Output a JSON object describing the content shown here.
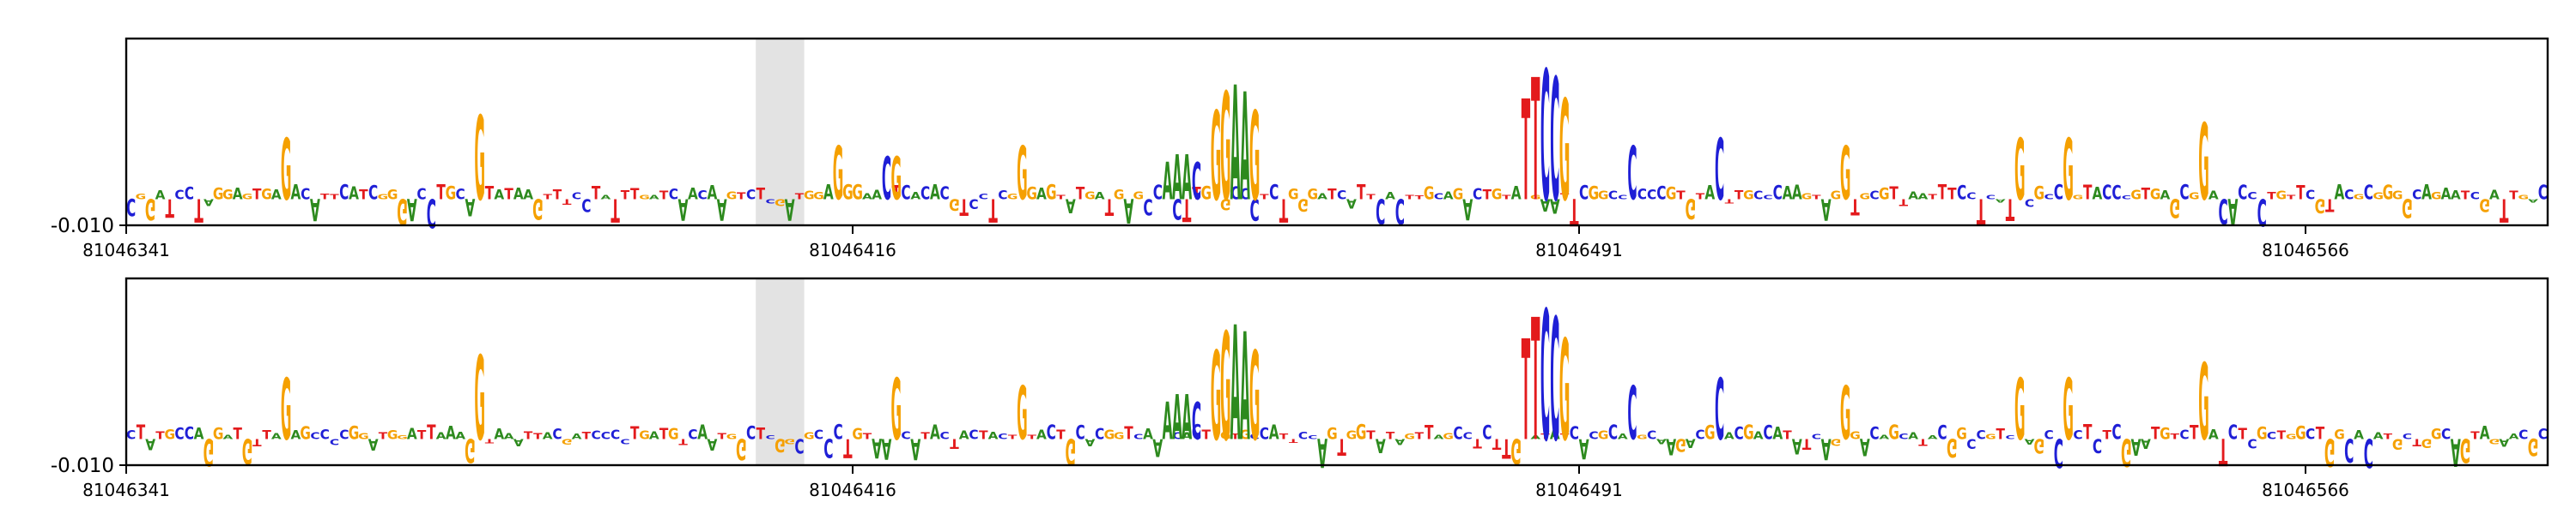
{
  "chart_data": [
    {
      "type": "sequence-logo",
      "panel": "top",
      "x_start": 81046341,
      "x_end": 81046591,
      "x_ticks": [
        81046341,
        81046416,
        81046491,
        81046566
      ],
      "x_tick_labels": [
        "81046341",
        "81046416",
        "81046491",
        "81046566"
      ],
      "y_tick_labels": [
        "-0.010"
      ],
      "highlight_region": [
        81046406,
        81046411
      ],
      "letter_colors": {
        "A": "#2d8a1e",
        "C": "#1f1fd6",
        "G": "#f5a000",
        "T": "#e31a1c"
      },
      "motif_peaks": [
        {
          "x": 81046357,
          "text": "G",
          "height": 0.4
        },
        {
          "x": 81046377,
          "text": "G",
          "height": 0.55
        },
        {
          "x": 81046414,
          "text": "G",
          "height": 0.35
        },
        {
          "x": 81046419,
          "text": "CG",
          "height": 0.3
        },
        {
          "x": 81046433,
          "text": "G",
          "height": 0.35
        },
        {
          "x": 81046448,
          "text": "AAAC",
          "height": 0.3
        },
        {
          "x": 81046453,
          "text": "GGAAG",
          "height": 0.75
        },
        {
          "x": 81046485,
          "text": "TTCCG",
          "height": 0.85
        },
        {
          "x": 81046496,
          "text": "C",
          "height": 0.35
        },
        {
          "x": 81046505,
          "text": "C",
          "height": 0.4
        },
        {
          "x": 81046518,
          "text": "G",
          "height": 0.35
        },
        {
          "x": 81046536,
          "text": "G",
          "height": 0.4
        },
        {
          "x": 81046541,
          "text": "G",
          "height": 0.4
        },
        {
          "x": 81046555,
          "text": "G",
          "height": 0.5
        }
      ]
    },
    {
      "type": "sequence-logo",
      "panel": "bottom",
      "x_start": 81046341,
      "x_end": 81046591,
      "x_ticks": [
        81046341,
        81046416,
        81046491,
        81046566
      ],
      "x_tick_labels": [
        "81046341",
        "81046416",
        "81046491",
        "81046566"
      ],
      "y_tick_labels": [
        "-0.010"
      ],
      "highlight_region": [
        81046406,
        81046411
      ],
      "letter_colors": {
        "A": "#2d8a1e",
        "C": "#1f1fd6",
        "G": "#f5a000",
        "T": "#e31a1c"
      },
      "motif_peaks": [
        {
          "x": 81046357,
          "text": "G",
          "height": 0.4
        },
        {
          "x": 81046377,
          "text": "G",
          "height": 0.55
        },
        {
          "x": 81046420,
          "text": "G",
          "height": 0.4
        },
        {
          "x": 81046433,
          "text": "G",
          "height": 0.35
        },
        {
          "x": 81046448,
          "text": "AAAC",
          "height": 0.3
        },
        {
          "x": 81046453,
          "text": "GGAAG",
          "height": 0.75
        },
        {
          "x": 81046485,
          "text": "TTCCG",
          "height": 0.85
        },
        {
          "x": 81046496,
          "text": "C",
          "height": 0.35
        },
        {
          "x": 81046505,
          "text": "C",
          "height": 0.4
        },
        {
          "x": 81046518,
          "text": "G",
          "height": 0.35
        },
        {
          "x": 81046536,
          "text": "G",
          "height": 0.4
        },
        {
          "x": 81046541,
          "text": "G",
          "height": 0.4
        },
        {
          "x": 81046555,
          "text": "G",
          "height": 0.5
        }
      ]
    }
  ]
}
